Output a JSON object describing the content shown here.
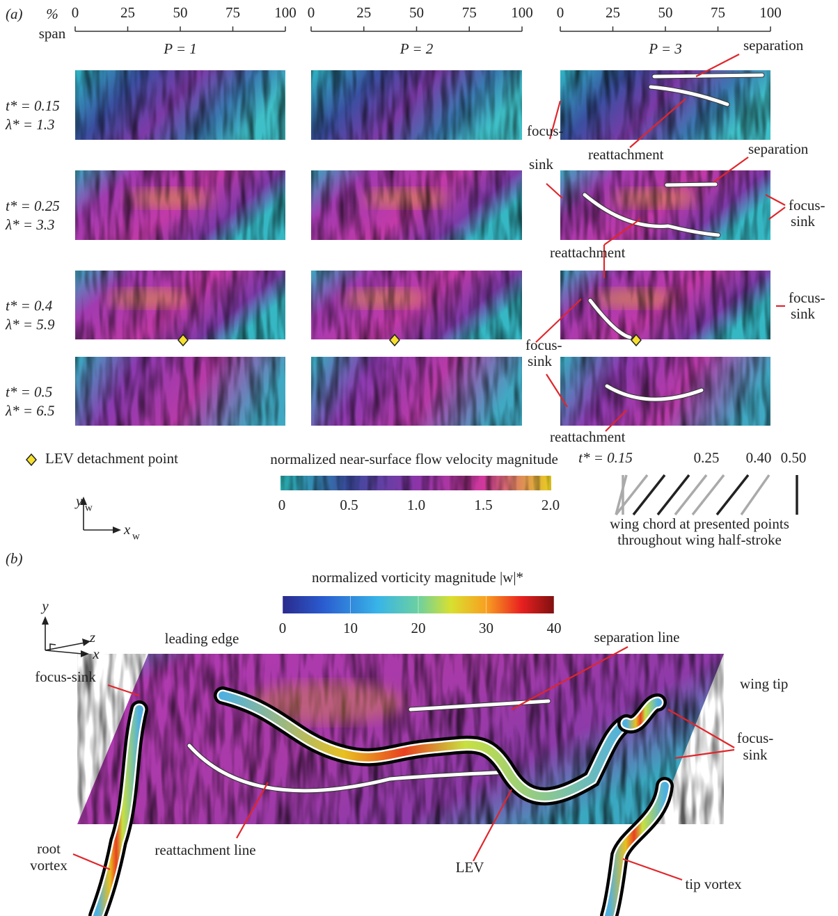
{
  "panel_a": {
    "label": "(a)",
    "span_label": [
      "%",
      "span"
    ],
    "scales": [
      {
        "ticks": [
          "0",
          "25",
          "50",
          "75",
          "100"
        ],
        "title": "P = 1"
      },
      {
        "ticks": [
          "0",
          "25",
          "50",
          "75",
          "100"
        ],
        "title": "P = 2"
      },
      {
        "ticks": [
          "0",
          "25",
          "50",
          "75",
          "100"
        ],
        "title": "P = 3"
      }
    ],
    "rows": [
      {
        "t": "t* = 0.15",
        "lambda": "λ* = 1.3"
      },
      {
        "t": "t* = 0.25",
        "lambda": "λ* = 3.3"
      },
      {
        "t": "t* = 0.4",
        "lambda": "λ* = 5.9"
      },
      {
        "t": "t* = 0.5",
        "lambda": "λ* = 6.5"
      }
    ],
    "annotations": [
      [
        "separation"
      ],
      [
        "reattachment"
      ],
      [
        "focus-",
        "sink"
      ],
      [
        "separation"
      ],
      [
        "focus-",
        "sink"
      ],
      [
        "reattachment"
      ],
      [
        "focus-",
        "sink"
      ],
      [
        "focus-",
        "sink"
      ],
      [
        "reattachment"
      ]
    ],
    "legend": "LEV detachment point",
    "colorbar": {
      "title": "normalized near-surface flow velocity magnitude",
      "ticks": [
        "0",
        "0.5",
        "1.0",
        "1.5",
        "2.0"
      ]
    },
    "chord_legend": {
      "labels": [
        "t* = 0.15",
        "0.25",
        "0.40",
        "0.50"
      ],
      "caption": [
        "wing chord at presented points",
        "throughout wing half-stroke"
      ]
    },
    "axes": {
      "y": "y",
      "y_sub": "w",
      "x": "x",
      "x_sub": "w"
    }
  },
  "panel_b": {
    "label": "(b)",
    "colorbar": {
      "title": "normalized vorticity magnitude |w|*",
      "ticks": [
        "0",
        "10",
        "20",
        "30",
        "40"
      ]
    },
    "axes": {
      "y": "y",
      "z": "z",
      "x": "x"
    },
    "annotations": [
      [
        "leading edge"
      ],
      [
        "separation line"
      ],
      [
        "wing tip"
      ],
      [
        "focus-sink"
      ],
      [
        "focus-",
        "sink"
      ],
      [
        "root",
        "vortex"
      ],
      [
        "reattachment line"
      ],
      [
        "LEV"
      ],
      [
        "tip vortex"
      ]
    ]
  }
}
